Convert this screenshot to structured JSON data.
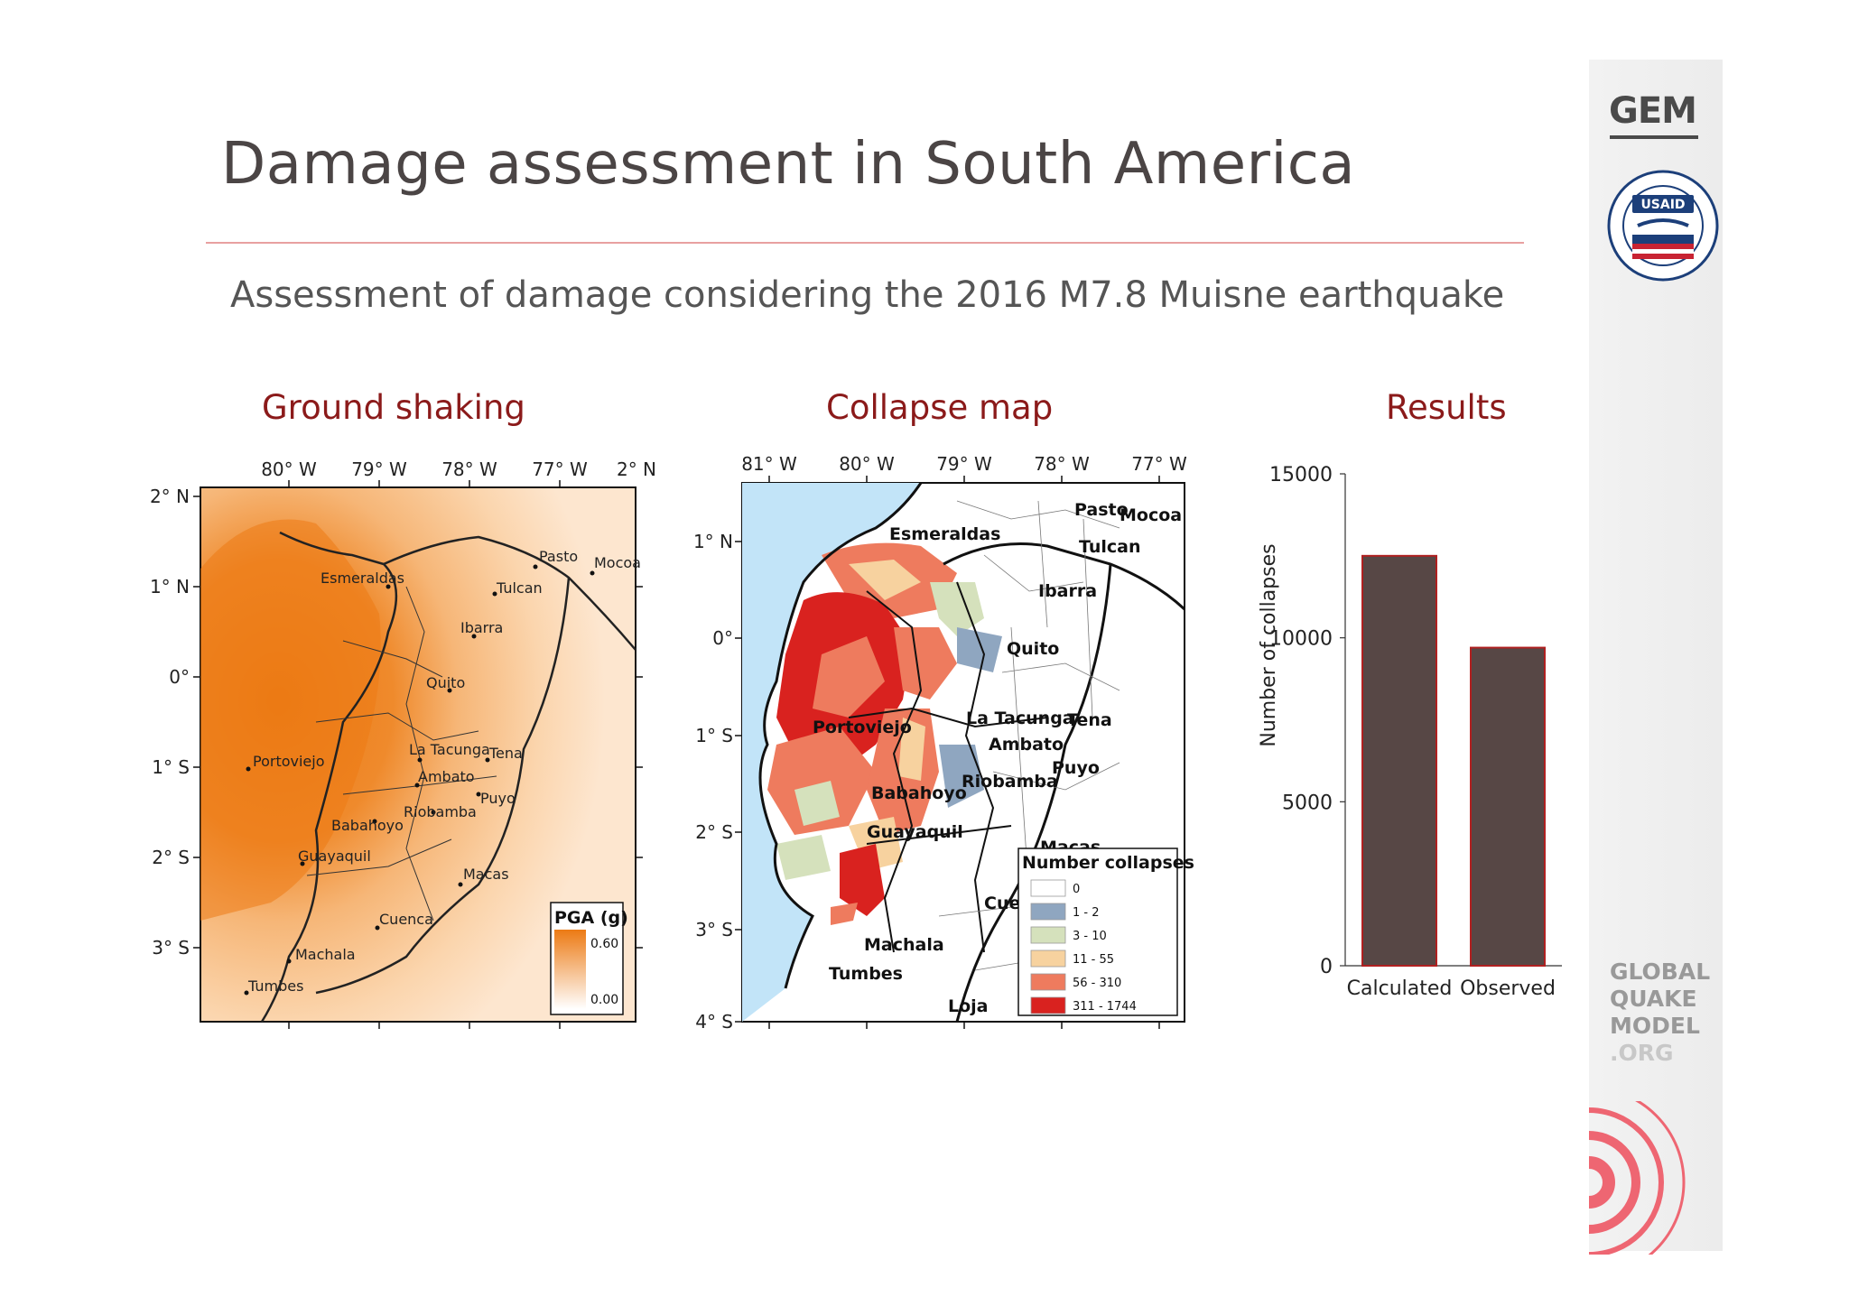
{
  "slide": {
    "title": "Damage assessment in South America",
    "subtitle": "Assessment of damage considering the 2016 M7.8 Muisne earthquake"
  },
  "branding": {
    "gem_logo": "GEM",
    "usaid_seal_text": "UNITED STATES AGENCY INTERNATIONAL DEVELOPMENT",
    "usaid_badge": "USAID",
    "gqm_line1": "GLOBAL",
    "gqm_line2": "QUAKE",
    "gqm_line3": "MODEL",
    "gqm_line4": ".ORG"
  },
  "panels": {
    "ground_shaking": {
      "title": "Ground shaking",
      "lon_labels": [
        "80° W",
        "79° W",
        "78° W",
        "77° W",
        "2° N"
      ],
      "lat_labels": [
        "2° N",
        "1° N",
        "0°",
        "1° S",
        "2° S",
        "3° S"
      ],
      "cities": [
        "Pasto",
        "Mocoa",
        "Esmeraldas",
        "Tulcan",
        "Ibarra",
        "Quito",
        "Portoviejo",
        "La Tacunga",
        "Tena",
        "Ambato",
        "Puyo",
        "Babahoyo",
        "Riobamba",
        "Guayaquil",
        "Macas",
        "Cuenca",
        "Machala",
        "Tumbes"
      ],
      "legend_title": "PGA (g)",
      "legend_max": "0.60",
      "legend_min": "0.00",
      "colors": {
        "high": "#ec7a14",
        "low": "#fde8d0"
      }
    },
    "collapse_map": {
      "title": "Collapse map",
      "lon_labels": [
        "81° W",
        "80° W",
        "79° W",
        "78° W",
        "77° W"
      ],
      "lat_labels": [
        "1° N",
        "0°",
        "1° S",
        "2° S",
        "3° S",
        "4° S"
      ],
      "cities": [
        "Esmeraldas",
        "Pasto",
        "Mocoa",
        "Tulcan",
        "Ibarra",
        "Quito",
        "La Tacunga",
        "Tena",
        "Portoviejo",
        "Ambato",
        "Puyo",
        "Babahoyo",
        "Riobamba",
        "Guayaquil",
        "Macas",
        "Cuenca",
        "Machala",
        "Tumbes",
        "Loja"
      ],
      "legend_title": "Number collapses",
      "legend_items": [
        {
          "label": "0",
          "color": "#ffffff"
        },
        {
          "label": "1 - 2",
          "color": "#8fa6c0"
        },
        {
          "label": "3 - 10",
          "color": "#d5e1bc"
        },
        {
          "label": "11 - 55",
          "color": "#f7d29f"
        },
        {
          "label": "56 - 310",
          "color": "#ee7b5e"
        },
        {
          "label": "311 - 1744",
          "color": "#d9221f"
        }
      ]
    },
    "results": {
      "title": "Results"
    }
  },
  "chart_data": {
    "type": "bar",
    "categories": [
      "Calculated",
      "Observed"
    ],
    "values": [
      12500,
      9700
    ],
    "ylabel": "Number of collapses",
    "ylim": [
      0,
      15000
    ],
    "yticks": [
      0,
      5000,
      10000,
      15000
    ],
    "bar_color": "#574745",
    "bar_edge_color": "#b02020"
  }
}
